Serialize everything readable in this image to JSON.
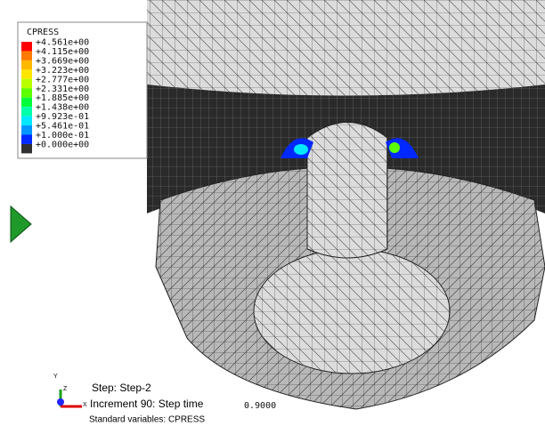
{
  "legend": {
    "title": "CPRESS",
    "labels": [
      "+4.561e+00",
      "+4.115e+00",
      "+3.669e+00",
      "+3.223e+00",
      "+2.777e+00",
      "+2.331e+00",
      "+1.885e+00",
      "+1.438e+00",
      "+9.923e-01",
      "+5.461e-01",
      "+1.000e-01",
      "+0.000e+00"
    ],
    "colors": [
      "#ff0000",
      "#ff7a00",
      "#ffb800",
      "#ffe600",
      "#b8ff00",
      "#5cff00",
      "#00ff3a",
      "#00ffa8",
      "#00e8ff",
      "#0096ff",
      "#0028ff",
      "#303030"
    ]
  },
  "triad": {
    "y": "Y",
    "z": "Z",
    "x": "X"
  },
  "status": {
    "step": "Step: Step-2",
    "increment": "Increment 90: Step time",
    "increment_value": "0.9000",
    "variables": "Standard variables: CPRESS"
  }
}
